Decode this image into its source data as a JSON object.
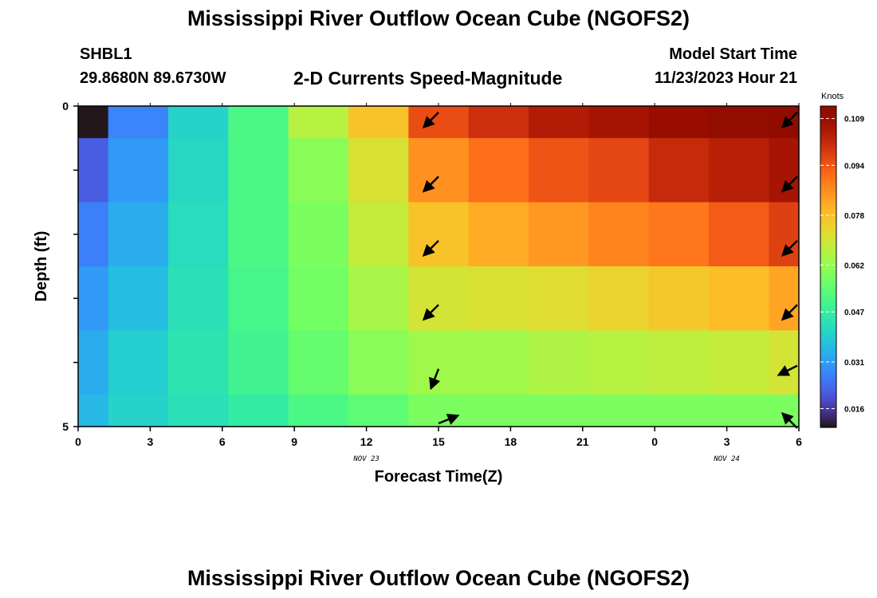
{
  "title": "Mississippi River Outflow Ocean Cube (NGOFS2)",
  "station": {
    "name": "SHBL1",
    "coords": "29.8680N  89.6730W"
  },
  "subtitle": "2-D Currents Speed-Magnitude",
  "model_start": {
    "label": "Model Start Time",
    "value": "11/23/2023 Hour 21"
  },
  "footer_title": "Mississippi River Outflow Ocean Cube (NGOFS2)",
  "chart_data": {
    "type": "heatmap",
    "xlabel": "Forecast Time(Z)",
    "ylabel": "Depth (ft)",
    "x_tick_labels": [
      "0",
      "3",
      "6",
      "9",
      "12",
      "15",
      "18",
      "21",
      "0",
      "3",
      "6"
    ],
    "x_range_hours": [
      0,
      30
    ],
    "y_tick_labels": [
      "0",
      "5"
    ],
    "y_range_ft": [
      0,
      5
    ],
    "date_labels": [
      {
        "text": "NOV 23",
        "hour": 12
      },
      {
        "text": "NOV 24",
        "hour": 27
      }
    ],
    "x_edges_hours": [
      0,
      1.25,
      3.75,
      6.25,
      8.75,
      11.25,
      13.75,
      16.25,
      18.75,
      21.25,
      23.75,
      26.25,
      28.75,
      30
    ],
    "y_edges_ft": [
      0,
      0.5,
      1.5,
      2.5,
      3.5,
      4.5,
      5
    ],
    "values_knots": [
      [
        0.009,
        0.027,
        0.04,
        0.051,
        0.066,
        0.077,
        0.095,
        0.1,
        0.104,
        0.106,
        0.109,
        0.111,
        0.113
      ],
      [
        0.021,
        0.03,
        0.041,
        0.051,
        0.06,
        0.071,
        0.085,
        0.09,
        0.094,
        0.096,
        0.101,
        0.103,
        0.106
      ],
      [
        0.026,
        0.033,
        0.042,
        0.051,
        0.058,
        0.068,
        0.077,
        0.081,
        0.084,
        0.087,
        0.089,
        0.093,
        0.097
      ],
      [
        0.03,
        0.036,
        0.043,
        0.05,
        0.057,
        0.064,
        0.07,
        0.071,
        0.072,
        0.074,
        0.076,
        0.078,
        0.082
      ],
      [
        0.033,
        0.039,
        0.044,
        0.049,
        0.055,
        0.06,
        0.063,
        0.063,
        0.065,
        0.066,
        0.067,
        0.068,
        0.07
      ],
      [
        0.035,
        0.04,
        0.043,
        0.046,
        0.051,
        0.054,
        0.058,
        0.058,
        0.058,
        0.058,
        0.058,
        0.058,
        0.058
      ]
    ],
    "vectors": [
      {
        "hour": 15,
        "depth_ft": 0.1,
        "dx": -1,
        "dy": 1
      },
      {
        "hour": 15,
        "depth_ft": 1.1,
        "dx": -1,
        "dy": 1
      },
      {
        "hour": 15,
        "depth_ft": 2.1,
        "dx": -1,
        "dy": 1
      },
      {
        "hour": 15,
        "depth_ft": 3.1,
        "dx": -1,
        "dy": 1
      },
      {
        "hour": 15,
        "depth_ft": 4.1,
        "dx": -0.5,
        "dy": 1.3
      },
      {
        "hour": 15,
        "depth_ft": 4.95,
        "dx": 1,
        "dy": -0.4
      },
      {
        "hour": 30,
        "depth_ft": 0.1,
        "dx": -1,
        "dy": 1
      },
      {
        "hour": 30,
        "depth_ft": 1.1,
        "dx": -1,
        "dy": 1
      },
      {
        "hour": 30,
        "depth_ft": 2.1,
        "dx": -1,
        "dy": 1
      },
      {
        "hour": 30,
        "depth_ft": 3.1,
        "dx": -1,
        "dy": 1
      },
      {
        "hour": 30,
        "depth_ft": 4.05,
        "dx": -1,
        "dy": 0.5
      },
      {
        "hour": 30,
        "depth_ft": 4.95,
        "dx": -1,
        "dy": -1
      }
    ],
    "colorbar": {
      "title": "Knots",
      "min": 0.01,
      "max": 0.113,
      "ticks": [
        0.016,
        0.031,
        0.047,
        0.062,
        0.078,
        0.094,
        0.109
      ],
      "tick_labels": [
        "0.016",
        "0.031",
        "0.047",
        "0.062",
        "0.078",
        "0.094",
        "0.109"
      ],
      "colormap": "turbo"
    }
  }
}
